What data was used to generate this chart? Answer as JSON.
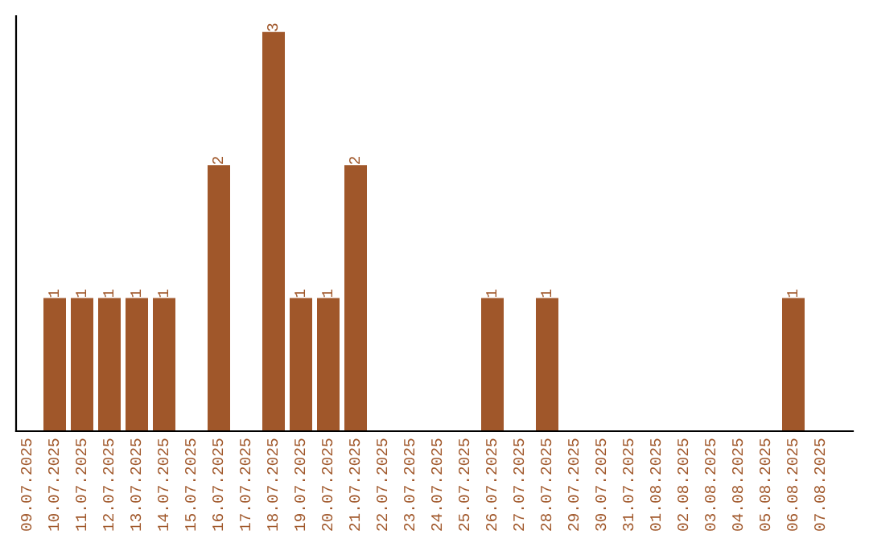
{
  "chart_data": {
    "type": "bar",
    "categories": [
      "09.07.2025",
      "10.07.2025",
      "11.07.2025",
      "12.07.2025",
      "13.07.2025",
      "14.07.2025",
      "15.07.2025",
      "16.07.2025",
      "17.07.2025",
      "18.07.2025",
      "19.07.2025",
      "20.07.2025",
      "21.07.2025",
      "22.07.2025",
      "23.07.2025",
      "24.07.2025",
      "25.07.2025",
      "26.07.2025",
      "27.07.2025",
      "28.07.2025",
      "29.07.2025",
      "30.07.2025",
      "31.07.2025",
      "01.08.2025",
      "02.08.2025",
      "03.08.2025",
      "04.08.2025",
      "05.08.2025",
      "06.08.2025",
      "07.08.2025"
    ],
    "values": [
      0,
      1,
      1,
      1,
      1,
      1,
      0,
      2,
      0,
      3,
      1,
      1,
      2,
      0,
      0,
      0,
      0,
      1,
      0,
      1,
      0,
      0,
      0,
      0,
      0,
      0,
      0,
      0,
      1,
      0
    ],
    "value_labels": [
      null,
      "1",
      "1",
      "1",
      "1",
      "1",
      null,
      "2",
      null,
      "3",
      "1",
      "1",
      "2",
      null,
      null,
      null,
      null,
      "1",
      null,
      "1",
      null,
      null,
      null,
      null,
      null,
      null,
      null,
      null,
      "1",
      null
    ],
    "color": "#a0572a",
    "tick_labels": "x",
    "grid": false,
    "legend": false
  }
}
